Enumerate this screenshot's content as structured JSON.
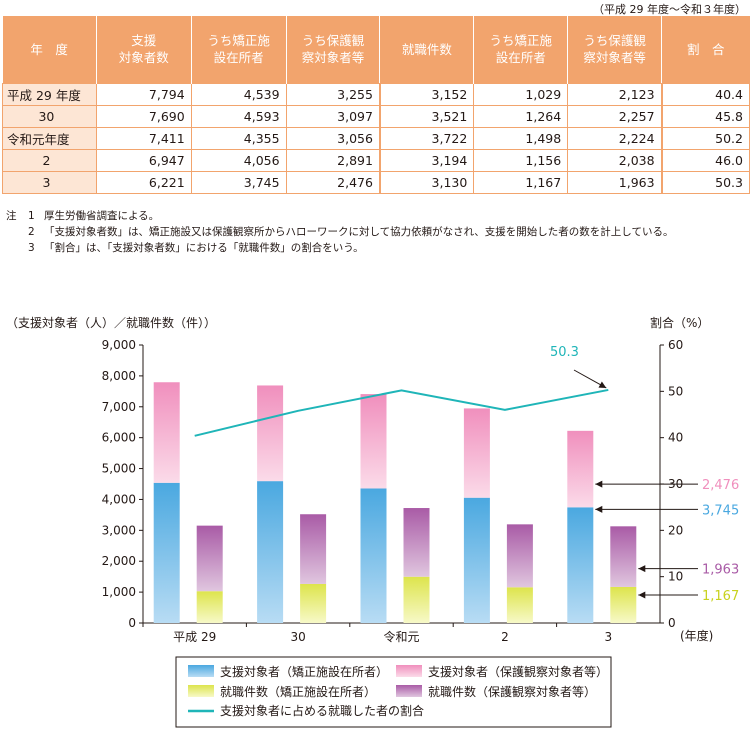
{
  "table": {
    "period_note": "（平成 29 年度〜令和３年度）",
    "headers": {
      "year": "年　度",
      "support_total": "支援\n対象者数",
      "support_corrections": "うち矯正施\n設在所者",
      "support_probation": "うち保護観\n察対象者等",
      "employment_total": "就職件数",
      "employment_corrections": "うち矯正施\n設在所者",
      "employment_probation": "うち保護観\n察対象者等",
      "ratio": "割　合"
    },
    "rows": [
      {
        "year": "平成 29 年度",
        "c1": "7,794",
        "c2": "4,539",
        "c3": "3,255",
        "c4": "3,152",
        "c5": "1,029",
        "c6": "2,123",
        "c7": "40.4"
      },
      {
        "year": "30",
        "c1": "7,690",
        "c2": "4,593",
        "c3": "3,097",
        "c4": "3,521",
        "c5": "1,264",
        "c6": "2,257",
        "c7": "45.8"
      },
      {
        "year": "令和元年度",
        "c1": "7,411",
        "c2": "4,355",
        "c3": "3,056",
        "c4": "3,722",
        "c5": "1,498",
        "c6": "2,224",
        "c7": "50.2"
      },
      {
        "year": "2",
        "c1": "6,947",
        "c2": "4,056",
        "c3": "2,891",
        "c4": "3,194",
        "c5": "1,156",
        "c6": "2,038",
        "c7": "46.0"
      },
      {
        "year": "3",
        "c1": "6,221",
        "c2": "3,745",
        "c3": "2,476",
        "c4": "3,130",
        "c5": "1,167",
        "c6": "1,963",
        "c7": "50.3"
      }
    ]
  },
  "notes": {
    "label": "注",
    "items": [
      {
        "num": "1",
        "text": "厚生労働省調査による。"
      },
      {
        "num": "2",
        "text": "「支援対象者数」は、矯正施設又は保護観察所からハローワークに対して協力依頼がなされ、支援を開始した者の数を計上している。"
      },
      {
        "num": "3",
        "text": "「割合」は、「支援対象者数」における「就職件数」の割合をいう。"
      }
    ]
  },
  "chart_data": {
    "type": "bar",
    "y_left_label": "（支援対象者（人）／就職件数（件））",
    "y_right_label": "割合（%）",
    "x_unit": "(年度)",
    "categories": [
      "平成 29",
      "30",
      "令和元",
      "2",
      "3"
    ],
    "ylim": [
      0,
      9000
    ],
    "y_ticks": [
      "0",
      "1,000",
      "2,000",
      "3,000",
      "4,000",
      "5,000",
      "6,000",
      "7,000",
      "8,000",
      "9,000"
    ],
    "y2lim": [
      0,
      60
    ],
    "y2_ticks": [
      "0",
      "10",
      "20",
      "30",
      "40",
      "50",
      "60"
    ],
    "support_series": [
      {
        "name": "支援対象者（矯正施設在所者）",
        "values": [
          4539,
          4593,
          4355,
          4056,
          3745
        ],
        "color": "#4aa8e0"
      },
      {
        "name": "支援対象者（保護観察対象者等）",
        "values": [
          3255,
          3097,
          3056,
          2891,
          2476
        ],
        "color": "#f08fbd"
      }
    ],
    "employment_series": [
      {
        "name": "就職件数（矯正施設在所者）",
        "values": [
          1029,
          1264,
          1498,
          1156,
          1167
        ],
        "color": "#dde44c"
      },
      {
        "name": "就職件数（保護観察対象者等）",
        "values": [
          2123,
          2257,
          2224,
          2038,
          1963
        ],
        "color": "#a95ba6"
      }
    ],
    "ratio_series": {
      "name": "支援対象者に占める就職した者の割合",
      "values": [
        40.4,
        45.8,
        50.2,
        46.0,
        50.3
      ],
      "color": "#1fb5b8"
    },
    "callouts": [
      {
        "text": "50.3",
        "color": "#1fb5b8"
      },
      {
        "text": "2,476",
        "color": "#f08fbd"
      },
      {
        "text": "3,745",
        "color": "#4aa8e0"
      },
      {
        "text": "1,963",
        "color": "#a95ba6"
      },
      {
        "text": "1,167",
        "color": "#c8d21e"
      }
    ]
  }
}
